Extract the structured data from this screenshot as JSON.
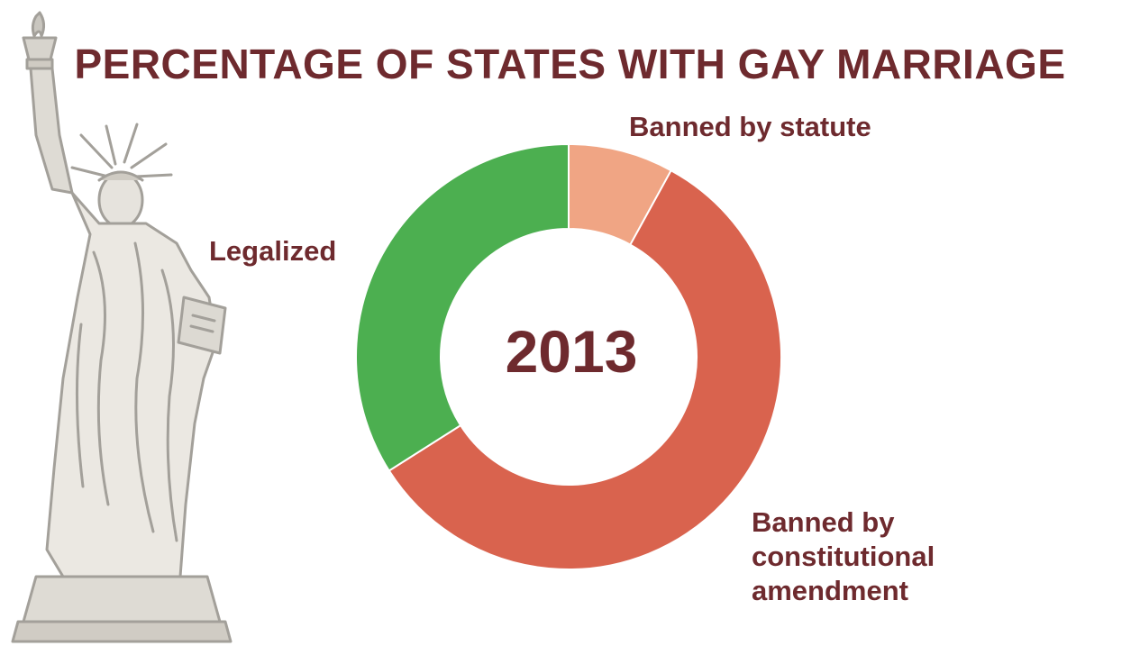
{
  "title": "PERCENTAGE OF STATES WITH GAY MARRIAGE",
  "center_label": "2013",
  "colors": {
    "title": "#6e2a2e",
    "legalized": "#4caf50",
    "banned_by_statute": "#f0a584",
    "banned_by_constitutional_amendment": "#d9634e",
    "statue": "#a3a09a"
  },
  "chart_data": {
    "type": "pie",
    "title": "PERCENTAGE OF STATES WITH GAY MARRIAGE",
    "center_text": "2013",
    "slices": [
      {
        "label": "Banned by statute",
        "value": 8,
        "color": "#f0a584"
      },
      {
        "label": "Banned by constitutional amendment",
        "value": 58,
        "color": "#d9634e"
      },
      {
        "label": "Legalized",
        "value": 34,
        "color": "#4caf50"
      }
    ],
    "start_angle_deg": 0,
    "direction": "clockwise",
    "donut": true
  },
  "labels": {
    "banned_by_statute": "Banned by statute",
    "legalized": "Legalized",
    "banned_by_constitutional_amendment_lines": [
      "Banned by",
      "constitutional",
      "amendment"
    ]
  },
  "decoration": {
    "statue_icon": "statue-of-liberty-icon"
  }
}
